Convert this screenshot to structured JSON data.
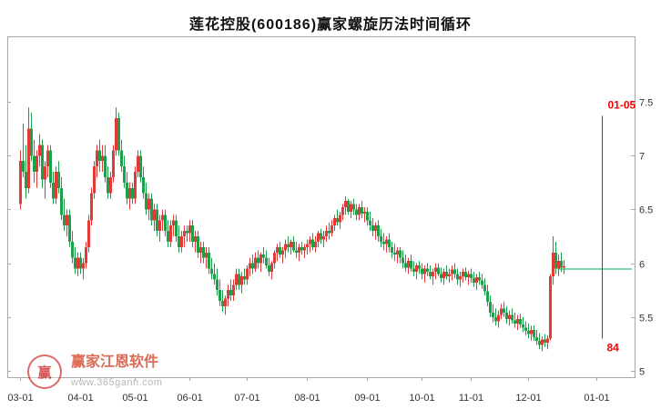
{
  "title": "莲花控股(600186)赢家螺旋历法时间循环",
  "watermark": {
    "brand": "赢家江恩软件",
    "url": "www.365gann.com",
    "logo_char": "赢"
  },
  "chart_data": {
    "type": "candlestick",
    "symbol": "600186",
    "stock_name": "莲花控股",
    "title": "莲花控股(600186)赢家螺旋历法时间循环",
    "legend_position": "none",
    "grid": false,
    "y_axis": {
      "side": "right",
      "ticks": [
        "7.5",
        "7",
        "6.5",
        "6",
        "5.5",
        "5"
      ],
      "min": 4.94,
      "max": 8.11
    },
    "x_axis": {
      "labels": [
        {
          "text": "03-01",
          "index": 0
        },
        {
          "text": "04-01",
          "index": 22
        },
        {
          "text": "05-01",
          "index": 42
        },
        {
          "text": "06-01",
          "index": 62
        },
        {
          "text": "07-01",
          "index": 83
        },
        {
          "text": "08-01",
          "index": 105
        },
        {
          "text": "09-01",
          "index": 127
        },
        {
          "text": "10-01",
          "index": 147
        },
        {
          "text": "11-01",
          "index": 165
        },
        {
          "text": "12-01",
          "index": 186
        },
        {
          "text": "01-01",
          "index": 211
        }
      ]
    },
    "colors": {
      "up": "#e23a36",
      "down": "#1ca049",
      "marker": "#ff0000",
      "hline": "#00b050",
      "frame": "#a8a8a8",
      "text": "#333333"
    },
    "green_line": {
      "price": 5.95,
      "start_index": 197
    },
    "time_marker": {
      "top_label": "01-05",
      "bottom_label": "84",
      "index": 213,
      "price_top": 7.37,
      "price_bottom": 5.3
    },
    "ohlc": [
      [
        6.55,
        7.05,
        6.5,
        6.95
      ],
      [
        6.95,
        7.3,
        6.8,
        6.85
      ],
      [
        6.85,
        7.1,
        6.6,
        6.7
      ],
      [
        6.7,
        7.45,
        6.65,
        7.25
      ],
      [
        7.25,
        7.4,
        6.95,
        7.0
      ],
      [
        7.0,
        7.15,
        6.75,
        6.85
      ],
      [
        6.85,
        7.05,
        6.7,
        7.0
      ],
      [
        7.0,
        7.2,
        6.9,
        7.1
      ],
      [
        7.1,
        7.15,
        6.7,
        6.78
      ],
      [
        6.78,
        6.95,
        6.6,
        6.9
      ],
      [
        6.9,
        7.1,
        6.8,
        7.05
      ],
      [
        7.05,
        7.1,
        6.7,
        6.75
      ],
      [
        6.75,
        6.85,
        6.55,
        6.6
      ],
      [
        6.6,
        6.9,
        6.55,
        6.85
      ],
      [
        6.85,
        6.95,
        6.65,
        6.7
      ],
      [
        6.7,
        6.8,
        6.4,
        6.45
      ],
      [
        6.45,
        6.6,
        6.3,
        6.35
      ],
      [
        6.35,
        6.5,
        6.25,
        6.45
      ],
      [
        6.45,
        6.5,
        6.15,
        6.2
      ],
      [
        6.2,
        6.3,
        6.0,
        6.05
      ],
      [
        6.05,
        6.15,
        5.9,
        5.95
      ],
      [
        5.95,
        6.1,
        5.88,
        6.05
      ],
      [
        6.05,
        6.1,
        5.9,
        5.95
      ],
      [
        5.95,
        6.05,
        5.85,
        6.0
      ],
      [
        6.0,
        6.2,
        5.95,
        6.15
      ],
      [
        6.15,
        6.45,
        6.1,
        6.4
      ],
      [
        6.4,
        6.7,
        6.35,
        6.65
      ],
      [
        6.65,
        6.95,
        6.6,
        6.9
      ],
      [
        6.9,
        7.1,
        6.8,
        7.05
      ],
      [
        7.05,
        7.15,
        6.85,
        6.95
      ],
      [
        6.95,
        7.1,
        6.85,
        7.0
      ],
      [
        7.0,
        7.1,
        6.75,
        6.8
      ],
      [
        6.8,
        6.9,
        6.6,
        6.65
      ],
      [
        6.65,
        6.85,
        6.6,
        6.8
      ],
      [
        6.8,
        7.1,
        6.75,
        7.05
      ],
      [
        7.05,
        7.45,
        7.0,
        7.35
      ],
      [
        7.35,
        7.4,
        7.0,
        7.05
      ],
      [
        7.05,
        7.15,
        6.85,
        6.9
      ],
      [
        6.9,
        7.0,
        6.7,
        6.75
      ],
      [
        6.75,
        6.85,
        6.55,
        6.6
      ],
      [
        6.6,
        6.75,
        6.5,
        6.7
      ],
      [
        6.7,
        6.75,
        6.55,
        6.6
      ],
      [
        6.6,
        6.9,
        6.55,
        6.85
      ],
      [
        6.85,
        7.05,
        6.8,
        7.0
      ],
      [
        7.0,
        7.05,
        6.75,
        6.8
      ],
      [
        6.8,
        6.9,
        6.6,
        6.65
      ],
      [
        6.65,
        6.75,
        6.45,
        6.5
      ],
      [
        6.5,
        6.65,
        6.4,
        6.6
      ],
      [
        6.6,
        6.65,
        6.35,
        6.4
      ],
      [
        6.4,
        6.55,
        6.3,
        6.5
      ],
      [
        6.5,
        6.55,
        6.25,
        6.3
      ],
      [
        6.3,
        6.45,
        6.2,
        6.4
      ],
      [
        6.4,
        6.5,
        6.3,
        6.45
      ],
      [
        6.45,
        6.5,
        6.25,
        6.3
      ],
      [
        6.3,
        6.4,
        6.15,
        6.2
      ],
      [
        6.2,
        6.4,
        6.15,
        6.35
      ],
      [
        6.35,
        6.45,
        6.25,
        6.4
      ],
      [
        6.4,
        6.45,
        6.2,
        6.25
      ],
      [
        6.25,
        6.35,
        6.1,
        6.15
      ],
      [
        6.15,
        6.3,
        6.1,
        6.25
      ],
      [
        6.25,
        6.35,
        6.15,
        6.3
      ],
      [
        6.3,
        6.35,
        6.2,
        6.28
      ],
      [
        6.28,
        6.4,
        6.2,
        6.35
      ],
      [
        6.35,
        6.4,
        6.15,
        6.2
      ],
      [
        6.2,
        6.3,
        6.1,
        6.25
      ],
      [
        6.25,
        6.3,
        6.05,
        6.1
      ],
      [
        6.1,
        6.2,
        6.0,
        6.15
      ],
      [
        6.15,
        6.2,
        6.0,
        6.05
      ],
      [
        6.05,
        6.15,
        5.95,
        6.1
      ],
      [
        6.1,
        6.15,
        5.9,
        5.95
      ],
      [
        5.95,
        6.05,
        5.85,
        5.9
      ],
      [
        5.9,
        6.0,
        5.8,
        5.85
      ],
      [
        5.85,
        5.95,
        5.7,
        5.75
      ],
      [
        5.75,
        5.85,
        5.6,
        5.65
      ],
      [
        5.65,
        5.75,
        5.55,
        5.6
      ],
      [
        5.6,
        5.7,
        5.52,
        5.67
      ],
      [
        5.67,
        5.8,
        5.6,
        5.75
      ],
      [
        5.75,
        5.85,
        5.65,
        5.7
      ],
      [
        5.7,
        5.85,
        5.65,
        5.8
      ],
      [
        5.8,
        5.95,
        5.75,
        5.9
      ],
      [
        5.9,
        5.95,
        5.75,
        5.8
      ],
      [
        5.8,
        5.92,
        5.72,
        5.88
      ],
      [
        5.88,
        5.95,
        5.8,
        5.85
      ],
      [
        5.85,
        5.98,
        5.8,
        5.95
      ],
      [
        5.95,
        6.05,
        5.88,
        6.0
      ],
      [
        6.0,
        6.08,
        5.9,
        5.95
      ],
      [
        5.95,
        6.1,
        5.92,
        6.05
      ],
      [
        6.05,
        6.12,
        5.95,
        6.0
      ],
      [
        6.0,
        6.1,
        5.92,
        6.08
      ],
      [
        6.08,
        6.15,
        6.0,
        6.05
      ],
      [
        6.05,
        6.12,
        5.95,
        5.98
      ],
      [
        5.98,
        6.05,
        5.88,
        5.92
      ],
      [
        5.92,
        6.02,
        5.85,
        6.0
      ],
      [
        6.0,
        6.12,
        5.95,
        6.1
      ],
      [
        6.1,
        6.18,
        6.02,
        6.15
      ],
      [
        6.15,
        6.2,
        6.05,
        6.08
      ],
      [
        6.08,
        6.15,
        6.0,
        6.12
      ],
      [
        6.12,
        6.22,
        6.05,
        6.18
      ],
      [
        6.18,
        6.25,
        6.1,
        6.15
      ],
      [
        6.15,
        6.22,
        6.08,
        6.2
      ],
      [
        6.2,
        6.25,
        6.1,
        6.12
      ],
      [
        6.12,
        6.2,
        6.05,
        6.1
      ],
      [
        6.1,
        6.18,
        6.02,
        6.15
      ],
      [
        6.15,
        6.2,
        6.08,
        6.12
      ],
      [
        6.12,
        6.18,
        6.05,
        6.15
      ],
      [
        6.15,
        6.22,
        6.08,
        6.18
      ],
      [
        6.18,
        6.25,
        6.1,
        6.22
      ],
      [
        6.22,
        6.28,
        6.12,
        6.15
      ],
      [
        6.15,
        6.25,
        6.1,
        6.2
      ],
      [
        6.2,
        6.3,
        6.15,
        6.28
      ],
      [
        6.28,
        6.32,
        6.18,
        6.22
      ],
      [
        6.22,
        6.3,
        6.15,
        6.25
      ],
      [
        6.25,
        6.35,
        6.2,
        6.3
      ],
      [
        6.3,
        6.38,
        6.22,
        6.28
      ],
      [
        6.28,
        6.4,
        6.25,
        6.35
      ],
      [
        6.35,
        6.45,
        6.3,
        6.42
      ],
      [
        6.42,
        6.5,
        6.35,
        6.38
      ],
      [
        6.38,
        6.48,
        6.32,
        6.45
      ],
      [
        6.45,
        6.55,
        6.4,
        6.52
      ],
      [
        6.52,
        6.62,
        6.45,
        6.58
      ],
      [
        6.58,
        6.6,
        6.45,
        6.48
      ],
      [
        6.48,
        6.58,
        6.42,
        6.55
      ],
      [
        6.55,
        6.6,
        6.45,
        6.5
      ],
      [
        6.5,
        6.55,
        6.4,
        6.45
      ],
      [
        6.45,
        6.55,
        6.4,
        6.52
      ],
      [
        6.52,
        6.58,
        6.42,
        6.46
      ],
      [
        6.46,
        6.52,
        6.38,
        6.48
      ],
      [
        6.48,
        6.52,
        6.35,
        6.4
      ],
      [
        6.4,
        6.48,
        6.3,
        6.35
      ],
      [
        6.35,
        6.42,
        6.25,
        6.3
      ],
      [
        6.3,
        6.38,
        6.22,
        6.35
      ],
      [
        6.35,
        6.4,
        6.2,
        6.25
      ],
      [
        6.25,
        6.32,
        6.15,
        6.2
      ],
      [
        6.2,
        6.28,
        6.12,
        6.18
      ],
      [
        6.18,
        6.25,
        6.1,
        6.22
      ],
      [
        6.22,
        6.28,
        6.1,
        6.15
      ],
      [
        6.15,
        6.2,
        6.05,
        6.1
      ],
      [
        6.1,
        6.18,
        6.02,
        6.08
      ],
      [
        6.08,
        6.15,
        6.0,
        6.12
      ],
      [
        6.12,
        6.15,
        6.0,
        6.05
      ],
      [
        6.05,
        6.12,
        5.95,
        6.0
      ],
      [
        6.0,
        6.08,
        5.92,
        5.96
      ],
      [
        5.96,
        6.05,
        5.9,
        6.02
      ],
      [
        6.02,
        6.08,
        5.92,
        5.95
      ],
      [
        5.95,
        6.02,
        5.88,
        5.92
      ],
      [
        5.92,
        6.0,
        5.85,
        5.98
      ],
      [
        5.98,
        6.02,
        5.9,
        5.95
      ],
      [
        5.95,
        6.0,
        5.85,
        5.9
      ],
      [
        5.9,
        5.98,
        5.82,
        5.95
      ],
      [
        5.95,
        6.0,
        5.88,
        5.92
      ],
      [
        5.92,
        5.98,
        5.85,
        5.88
      ],
      [
        5.88,
        5.95,
        5.8,
        5.92
      ],
      [
        5.92,
        6.0,
        5.85,
        5.96
      ],
      [
        5.96,
        6.0,
        5.88,
        5.9
      ],
      [
        5.9,
        5.96,
        5.82,
        5.86
      ],
      [
        5.86,
        5.95,
        5.8,
        5.92
      ],
      [
        5.92,
        5.98,
        5.85,
        5.88
      ],
      [
        5.88,
        5.95,
        5.82,
        5.9
      ],
      [
        5.9,
        5.98,
        5.84,
        5.94
      ],
      [
        5.94,
        6.0,
        5.86,
        5.9
      ],
      [
        5.9,
        5.95,
        5.8,
        5.85
      ],
      [
        5.85,
        5.92,
        5.78,
        5.88
      ],
      [
        5.88,
        5.95,
        5.82,
        5.92
      ],
      [
        5.92,
        5.96,
        5.84,
        5.87
      ],
      [
        5.87,
        5.93,
        5.8,
        5.9
      ],
      [
        5.9,
        5.95,
        5.82,
        5.86
      ],
      [
        5.86,
        5.92,
        5.78,
        5.82
      ],
      [
        5.82,
        5.9,
        5.75,
        5.87
      ],
      [
        5.87,
        5.92,
        5.8,
        5.84
      ],
      [
        5.84,
        5.9,
        5.76,
        5.8
      ],
      [
        5.8,
        5.86,
        5.7,
        5.74
      ],
      [
        5.74,
        5.8,
        5.6,
        5.64
      ],
      [
        5.64,
        5.7,
        5.5,
        5.54
      ],
      [
        5.54,
        5.62,
        5.45,
        5.5
      ],
      [
        5.5,
        5.58,
        5.42,
        5.46
      ],
      [
        5.46,
        5.56,
        5.4,
        5.52
      ],
      [
        5.52,
        5.62,
        5.48,
        5.58
      ],
      [
        5.58,
        5.64,
        5.5,
        5.54
      ],
      [
        5.54,
        5.6,
        5.44,
        5.48
      ],
      [
        5.48,
        5.56,
        5.42,
        5.52
      ],
      [
        5.52,
        5.58,
        5.44,
        5.47
      ],
      [
        5.47,
        5.54,
        5.4,
        5.44
      ],
      [
        5.44,
        5.52,
        5.38,
        5.48
      ],
      [
        5.48,
        5.53,
        5.4,
        5.43
      ],
      [
        5.43,
        5.5,
        5.36,
        5.4
      ],
      [
        5.4,
        5.46,
        5.33,
        5.37
      ],
      [
        5.37,
        5.44,
        5.3,
        5.34
      ],
      [
        5.34,
        5.42,
        5.28,
        5.38
      ],
      [
        5.38,
        5.42,
        5.28,
        5.31
      ],
      [
        5.31,
        5.38,
        5.24,
        5.28
      ],
      [
        5.28,
        5.35,
        5.2,
        5.24
      ],
      [
        5.24,
        5.32,
        5.18,
        5.29
      ],
      [
        5.29,
        5.34,
        5.22,
        5.26
      ],
      [
        5.26,
        5.33,
        5.2,
        5.3
      ],
      [
        5.3,
        5.9,
        5.28,
        5.88
      ],
      [
        5.88,
        6.25,
        5.8,
        6.1
      ],
      [
        6.1,
        6.2,
        5.9,
        5.95
      ],
      [
        5.95,
        6.08,
        5.88,
        6.02
      ],
      [
        6.02,
        6.1,
        5.92,
        5.96
      ],
      [
        5.96,
        6.03,
        5.9,
        5.97
      ]
    ]
  }
}
